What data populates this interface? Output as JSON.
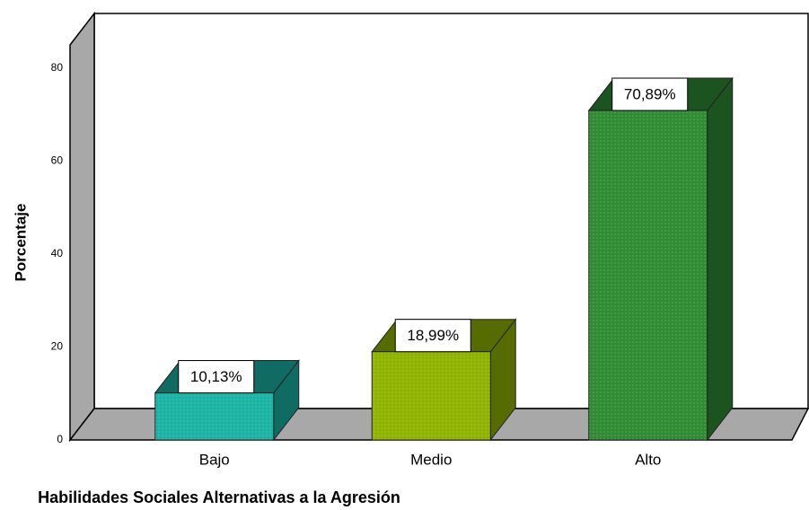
{
  "chart_data": {
    "type": "bar3d",
    "x_label": "Habilidades Sociales Alternativas a la Agresión",
    "y_label": "Porcentaje",
    "categories": [
      "Bajo",
      "Medio",
      "Alto"
    ],
    "values": [
      10.13,
      18.99,
      70.89
    ],
    "value_labels": [
      "10,13%",
      "18,99%",
      "70,89%"
    ],
    "colors": [
      "#1bb3a3",
      "#8fb300",
      "#2f8c33"
    ],
    "ylim": [
      0,
      85
    ],
    "yticks": [
      0,
      20,
      40,
      60,
      80
    ],
    "grid": false
  }
}
